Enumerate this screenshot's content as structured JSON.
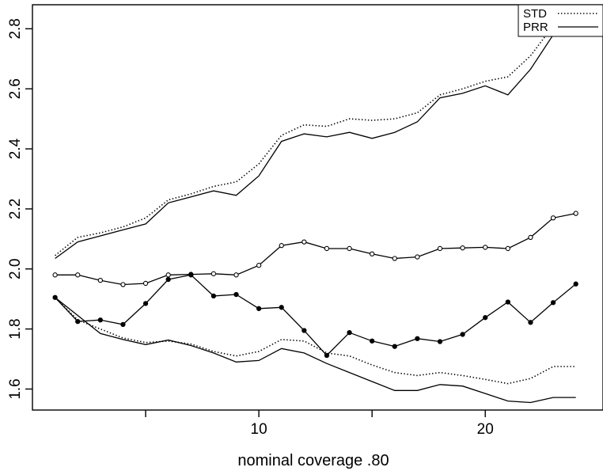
{
  "chart_data": {
    "type": "line",
    "title": "",
    "xlabel": "nominal coverage .80",
    "ylabel": "",
    "xlim": [
      0,
      25.2
    ],
    "ylim": [
      1.53,
      2.88
    ],
    "x_ticks": [
      5,
      10,
      15,
      20
    ],
    "x_tick_labels": [
      "",
      "10",
      "",
      "20"
    ],
    "y_ticks": [
      1.6,
      1.8,
      2.0,
      2.2,
      2.4,
      2.6,
      2.8
    ],
    "y_tick_labels": [
      "1.6",
      "1.8",
      "2.0",
      "2.2",
      "2.4",
      "2.6",
      "2.8"
    ],
    "grid": false,
    "legend": {
      "placement": "top-right",
      "entries": [
        {
          "label": "STD",
          "style": "dotted"
        },
        {
          "label": "PRR",
          "style": "solid"
        }
      ]
    },
    "x": [
      1,
      2,
      3,
      4,
      5,
      6,
      7,
      8,
      9,
      10,
      11,
      12,
      13,
      14,
      15,
      16,
      17,
      18,
      19,
      20,
      21,
      22,
      23,
      24
    ],
    "series": [
      {
        "style": "dotted",
        "marker": "none",
        "values": [
          2.045,
          2.105,
          2.12,
          2.14,
          2.17,
          2.23,
          2.25,
          2.275,
          2.29,
          2.35,
          2.445,
          2.48,
          2.475,
          2.5,
          2.495,
          2.5,
          2.52,
          2.58,
          2.6,
          2.625,
          2.64,
          2.71,
          2.81,
          2.85
        ]
      },
      {
        "style": "solid",
        "marker": "none",
        "values": [
          2.035,
          2.09,
          2.11,
          2.13,
          2.15,
          2.22,
          2.24,
          2.26,
          2.245,
          2.31,
          2.425,
          2.45,
          2.44,
          2.455,
          2.435,
          2.455,
          2.49,
          2.57,
          2.585,
          2.61,
          2.58,
          2.665,
          2.78,
          2.8
        ]
      },
      {
        "style": "solid",
        "marker": "open-circle",
        "values": [
          1.98,
          1.98,
          1.962,
          1.948,
          1.952,
          1.98,
          1.982,
          1.984,
          1.98,
          2.012,
          2.078,
          2.09,
          2.068,
          2.068,
          2.05,
          2.035,
          2.04,
          2.068,
          2.07,
          2.072,
          2.068,
          2.105,
          2.17,
          2.185
        ]
      },
      {
        "style": "solid",
        "marker": "filled-circle",
        "values": [
          1.905,
          1.825,
          1.83,
          1.815,
          1.885,
          1.965,
          1.98,
          1.91,
          1.915,
          1.868,
          1.872,
          1.795,
          1.712,
          1.788,
          1.76,
          1.742,
          1.768,
          1.758,
          1.782,
          1.838,
          1.89,
          1.822,
          1.888,
          1.95
        ]
      },
      {
        "style": "dotted",
        "marker": "none",
        "values": [
          1.905,
          1.83,
          1.8,
          1.77,
          1.755,
          1.76,
          1.75,
          1.725,
          1.71,
          1.725,
          1.765,
          1.76,
          1.72,
          1.71,
          1.68,
          1.655,
          1.645,
          1.655,
          1.645,
          1.632,
          1.618,
          1.635,
          1.675,
          1.675
        ]
      },
      {
        "style": "solid",
        "marker": "none",
        "values": [
          1.905,
          1.845,
          1.785,
          1.765,
          1.748,
          1.763,
          1.745,
          1.72,
          1.69,
          1.695,
          1.735,
          1.72,
          1.685,
          1.655,
          1.625,
          1.595,
          1.595,
          1.615,
          1.61,
          1.585,
          1.56,
          1.555,
          1.572,
          1.572
        ]
      }
    ]
  }
}
